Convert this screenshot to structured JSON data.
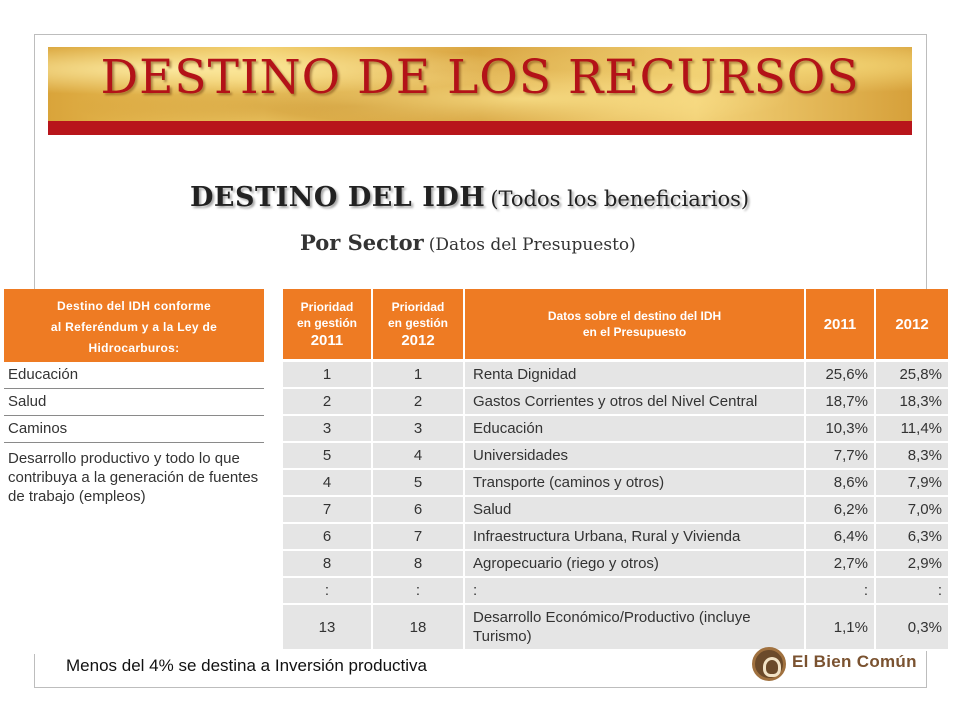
{
  "title": "DESTINO DE LOS RECURSOS",
  "subtitle": {
    "main": "DESTINO DEL IDH",
    "paren": "(Todos los beneficiarios)"
  },
  "subtitle2": {
    "main": "Por Sector",
    "paren": "(Datos del Presupuesto)"
  },
  "left_table": {
    "header_lines": [
      "Destino del IDH conforme",
      "al Referéndum y a la Ley de",
      "Hidrocarburos:"
    ],
    "rows": [
      "Educación",
      "Salud",
      "Caminos",
      "Desarrollo productivo y todo lo que contribuya a la generación de fuentes de trabajo (empleos)"
    ]
  },
  "right_table": {
    "headers": {
      "prio2011_top": "Prioridad",
      "prio2011_mid": "en gestión",
      "prio2011_year": "2011",
      "prio2012_top": "Prioridad",
      "prio2012_mid": "en gestión",
      "prio2012_year": "2012",
      "datos_line1": "Datos sobre el destino del IDH",
      "datos_line2": "en el Presupuesto",
      "y2011": "2011",
      "y2012": "2012"
    },
    "rows": [
      {
        "p2011": "1",
        "p2012": "1",
        "destino": "Renta Dignidad",
        "v2011": "25,6%",
        "v2012": "25,8%"
      },
      {
        "p2011": "2",
        "p2012": "2",
        "destino": "Gastos Corrientes y otros del Nivel Central",
        "v2011": "18,7%",
        "v2012": "18,3%"
      },
      {
        "p2011": "3",
        "p2012": "3",
        "destino": "Educación",
        "v2011": "10,3%",
        "v2012": "11,4%"
      },
      {
        "p2011": "5",
        "p2012": "4",
        "destino": "Universidades",
        "v2011": "7,7%",
        "v2012": "8,3%"
      },
      {
        "p2011": "4",
        "p2012": "5",
        "destino": "Transporte (caminos y otros)",
        "v2011": "8,6%",
        "v2012": "7,9%"
      },
      {
        "p2011": "7",
        "p2012": "6",
        "destino": "Salud",
        "v2011": "6,2%",
        "v2012": "7,0%"
      },
      {
        "p2011": "6",
        "p2012": "7",
        "destino": "Infraestructura Urbana, Rural y Vivienda",
        "v2011": "6,4%",
        "v2012": "6,3%"
      },
      {
        "p2011": "8",
        "p2012": "8",
        "destino": "Agropecuario (riego y otros)",
        "v2011": "2,7%",
        "v2012": "2,9%"
      },
      {
        "p2011": ":",
        "p2012": ":",
        "destino": ":",
        "v2011": ":",
        "v2012": ":"
      },
      {
        "p2011": "13",
        "p2012": "18",
        "destino": "Desarrollo Económico/Productivo (incluye Turismo)",
        "v2011": "1,1%",
        "v2012": "0,3%"
      }
    ]
  },
  "footer_note": "Menos del 4% se destina a Inversión productiva",
  "logo": {
    "text": "El Bien Común",
    "icon": "bien-comun-logo-icon"
  },
  "colors": {
    "title_red": "#b31218",
    "banner_bar": "#b8151b",
    "header_orange": "#ee7b23",
    "row_gray": "#e5e5e5"
  }
}
